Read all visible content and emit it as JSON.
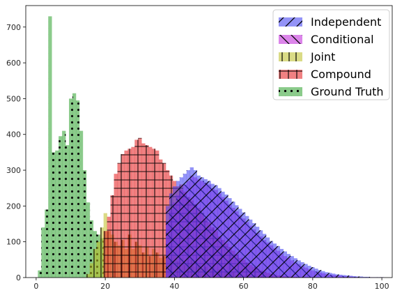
{
  "chart_data": {
    "type": "bar",
    "subtype": "overlapping-histogram",
    "title": "",
    "xlabel": "",
    "ylabel": "",
    "xlim": [
      -3,
      103
    ],
    "ylim": [
      0,
      760
    ],
    "grid": false,
    "legend_position": "top-right",
    "x_ticks": [
      0,
      20,
      40,
      60,
      80,
      100
    ],
    "y_ticks": [
      0,
      100,
      200,
      300,
      400,
      500,
      600,
      700
    ],
    "x_tick_labels": [
      "0",
      "20",
      "40",
      "60",
      "80",
      "100"
    ],
    "y_tick_labels": [
      "0",
      "100",
      "200",
      "300",
      "400",
      "500",
      "600",
      "700"
    ],
    "bin_width": 1,
    "series": [
      {
        "name": "Ground Truth",
        "color": "#2ca02c",
        "hatch": "dots",
        "x": [
          1,
          2,
          3,
          4,
          5,
          6,
          7,
          8,
          9,
          10,
          11,
          12,
          13,
          14,
          15,
          16,
          17,
          18,
          19,
          20
        ],
        "values": [
          20,
          140,
          190,
          730,
          350,
          355,
          395,
          410,
          370,
          500,
          515,
          495,
          410,
          300,
          210,
          160,
          130,
          120,
          110,
          0
        ]
      },
      {
        "name": "Joint",
        "color": "#bcbd22",
        "hatch": "vertical-lines",
        "x": [
          15,
          16,
          17,
          18,
          19,
          20,
          21,
          22,
          23,
          24,
          25,
          26,
          27,
          28,
          29,
          30,
          31,
          32,
          33,
          34,
          35,
          36,
          37,
          38,
          39,
          40,
          41,
          42,
          43,
          44,
          45,
          46,
          47,
          48,
          49,
          50,
          51,
          52,
          53,
          54,
          55,
          56,
          57,
          58,
          59,
          60,
          61,
          62,
          63,
          64,
          65,
          66,
          67,
          68,
          69,
          70
        ],
        "values": [
          10,
          40,
          80,
          100,
          140,
          180,
          130,
          120,
          100,
          90,
          105,
          80,
          120,
          80,
          100,
          90,
          70,
          85,
          60,
          80,
          70,
          55,
          60,
          75,
          50,
          65,
          45,
          55,
          35,
          40,
          50,
          30,
          35,
          25,
          30,
          20,
          28,
          15,
          22,
          12,
          18,
          10,
          14,
          8,
          10,
          6,
          7,
          5,
          6,
          4,
          4,
          3,
          3,
          2,
          2,
          1
        ]
      },
      {
        "name": "Compound",
        "color": "#e31a1c",
        "hatch": "grid",
        "x": [
          20,
          21,
          22,
          23,
          24,
          25,
          26,
          27,
          28,
          29,
          30,
          31,
          32,
          33,
          34,
          35,
          36,
          37,
          38,
          39,
          40,
          41,
          42,
          43,
          44,
          45,
          46,
          47,
          48,
          49,
          50,
          51,
          52,
          53,
          54,
          55,
          56,
          57,
          58,
          59,
          60,
          61,
          62,
          63,
          64,
          65,
          66,
          67,
          68,
          69,
          70,
          71,
          72,
          73,
          74,
          75,
          76,
          77,
          78,
          79,
          80
        ],
        "values": [
          130,
          170,
          230,
          290,
          320,
          345,
          355,
          360,
          365,
          385,
          390,
          375,
          370,
          365,
          360,
          355,
          330,
          320,
          300,
          285,
          270,
          255,
          260,
          240,
          225,
          215,
          205,
          195,
          180,
          165,
          155,
          140,
          130,
          115,
          105,
          95,
          85,
          75,
          65,
          55,
          50,
          42,
          35,
          30,
          25,
          20,
          16,
          13,
          10,
          8,
          6,
          5,
          4,
          3,
          2,
          2,
          1,
          1,
          1,
          1,
          1
        ]
      },
      {
        "name": "Conditional",
        "color": "#bf20d8",
        "hatch": "backslash",
        "x": [
          38,
          39,
          40,
          41,
          42,
          43,
          44,
          45,
          46,
          47,
          48,
          49,
          50,
          51,
          52,
          53,
          54,
          55,
          56,
          57,
          58,
          59,
          60,
          61,
          62,
          63,
          64,
          65,
          66,
          67,
          68,
          69,
          70,
          71,
          72,
          73,
          74,
          75,
          76,
          77,
          78,
          79,
          80,
          81,
          82,
          83,
          84,
          85,
          86,
          87,
          88,
          89,
          90,
          91,
          92,
          93,
          94,
          95,
          96,
          97,
          98,
          99,
          100
        ],
        "values": [
          155,
          190,
          210,
          230,
          245,
          260,
          270,
          285,
          280,
          275,
          270,
          265,
          260,
          250,
          245,
          235,
          225,
          215,
          205,
          195,
          185,
          175,
          165,
          155,
          145,
          135,
          125,
          115,
          105,
          98,
          90,
          82,
          75,
          68,
          60,
          55,
          48,
          42,
          38,
          32,
          28,
          24,
          20,
          17,
          14,
          12,
          10,
          8,
          7,
          6,
          5,
          4,
          3,
          3,
          2,
          2,
          1,
          1,
          1,
          1,
          1,
          1,
          1
        ]
      },
      {
        "name": "Independent",
        "color": "#3a3af0",
        "hatch": "slash",
        "x": [
          38,
          39,
          40,
          41,
          42,
          43,
          44,
          45,
          46,
          47,
          48,
          49,
          50,
          51,
          52,
          53,
          54,
          55,
          56,
          57,
          58,
          59,
          60,
          61,
          62,
          63,
          64,
          65,
          66,
          67,
          68,
          69,
          70,
          71,
          72,
          73,
          74,
          75,
          76,
          77,
          78,
          79,
          80,
          81,
          82,
          83,
          84,
          85,
          86,
          87,
          88,
          89,
          90,
          91,
          92,
          93,
          94,
          95,
          96,
          97,
          98,
          99,
          100
        ],
        "values": [
          200,
          235,
          255,
          270,
          280,
          290,
          300,
          308,
          300,
          285,
          280,
          275,
          270,
          262,
          258,
          250,
          240,
          232,
          222,
          212,
          202,
          192,
          182,
          172,
          162,
          152,
          142,
          132,
          122,
          112,
          102,
          95,
          88,
          80,
          73,
          66,
          60,
          54,
          48,
          43,
          38,
          33,
          29,
          25,
          21,
          18,
          15,
          13,
          11,
          9,
          8,
          7,
          6,
          5,
          4,
          3,
          3,
          2,
          2,
          1,
          1,
          1,
          1
        ]
      }
    ],
    "legend": [
      "Independent",
      "Conditional",
      "Joint",
      "Compound",
      "Ground Truth"
    ]
  }
}
